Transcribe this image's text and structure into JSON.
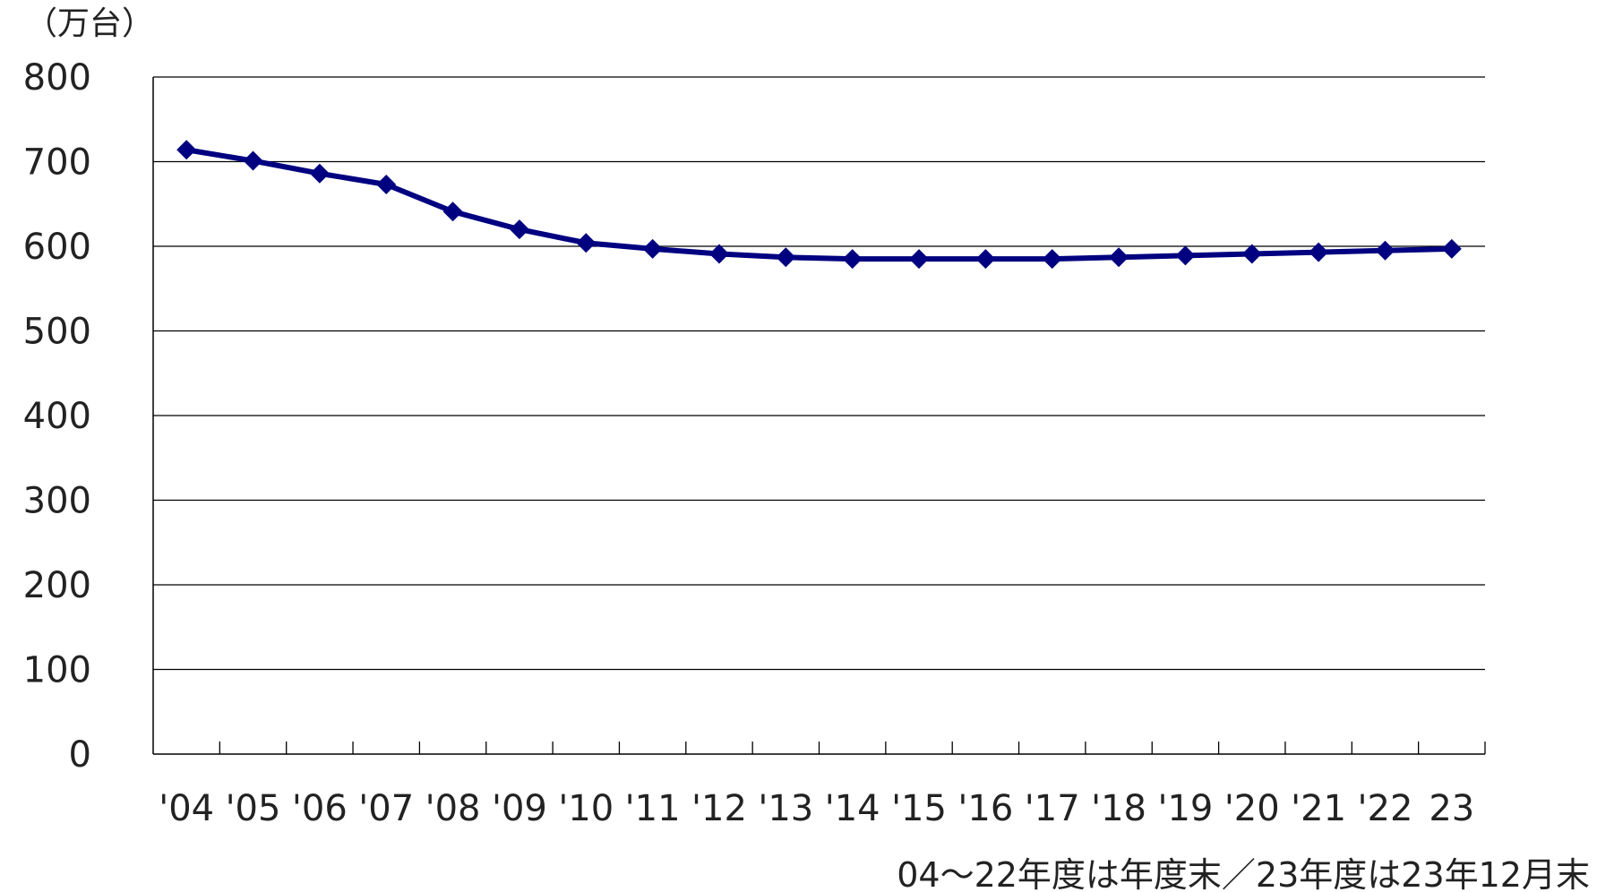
{
  "chart_data": {
    "type": "line",
    "ylabel": "（万台）",
    "ylim": [
      0,
      800
    ],
    "yticks": [
      "0",
      "100",
      "200",
      "300",
      "400",
      "500",
      "600",
      "700",
      "800"
    ],
    "categories": [
      "'04",
      "'05",
      "'06",
      "'07",
      "'08",
      "'09",
      "'10",
      "'11",
      "'12",
      "'13",
      "'14",
      "'15",
      "'16",
      "'17",
      "'18",
      "'19",
      "'20",
      "'21",
      "'22",
      "23"
    ],
    "series": [
      {
        "values": [
          714,
          701,
          686,
          673,
          641,
          620,
          604,
          597,
          591,
          587,
          585,
          585,
          585,
          585,
          587,
          589,
          591,
          593,
          595,
          597
        ],
        "color": "#000080"
      }
    ],
    "grid": true,
    "note": "04～22年度は年度末／23年度は23年12月末"
  },
  "colors": {
    "line": "#000080",
    "grid": "#000000",
    "text": "#222222"
  }
}
